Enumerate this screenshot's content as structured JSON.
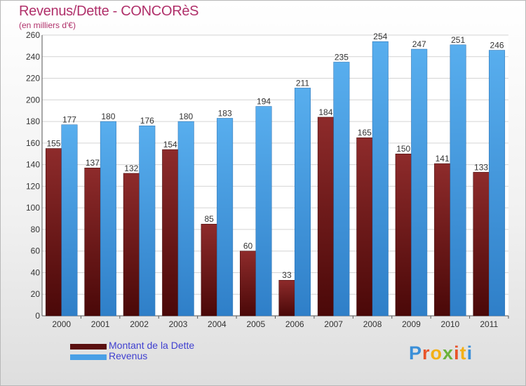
{
  "header": {
    "title": "Revenus/Dette - CONCORèS",
    "subtitle": "(en milliers d'€)"
  },
  "colors": {
    "dette": "#7a2020",
    "revenus": "#4aa0e6",
    "title": "#b0306a",
    "legend_text": "#4040d0"
  },
  "chart_data": {
    "type": "bar",
    "title": "Revenus/Dette - CONCORèS",
    "subtitle": "(en milliers d'€)",
    "categories": [
      "2000",
      "2001",
      "2002",
      "2003",
      "2004",
      "2005",
      "2006",
      "2007",
      "2008",
      "2009",
      "2010",
      "2011"
    ],
    "series": [
      {
        "name": "Montant de la Dette",
        "values": [
          155,
          137,
          132,
          154,
          85,
          60,
          33,
          184,
          165,
          150,
          141,
          133
        ]
      },
      {
        "name": "Revenus",
        "values": [
          177,
          180,
          176,
          180,
          183,
          194,
          211,
          235,
          254,
          247,
          251,
          246
        ]
      }
    ],
    "ylim": [
      0,
      260
    ],
    "yticks": [
      0,
      20,
      40,
      60,
      80,
      100,
      120,
      140,
      160,
      180,
      200,
      220,
      240,
      260
    ],
    "grid": true,
    "legend_position": "bottom-left"
  },
  "legend": {
    "items": [
      {
        "label": "Montant de la Dette"
      },
      {
        "label": "Revenus"
      }
    ]
  },
  "logo": {
    "letters": [
      "P",
      "r",
      "o",
      "x",
      "i",
      "t",
      "i"
    ]
  }
}
